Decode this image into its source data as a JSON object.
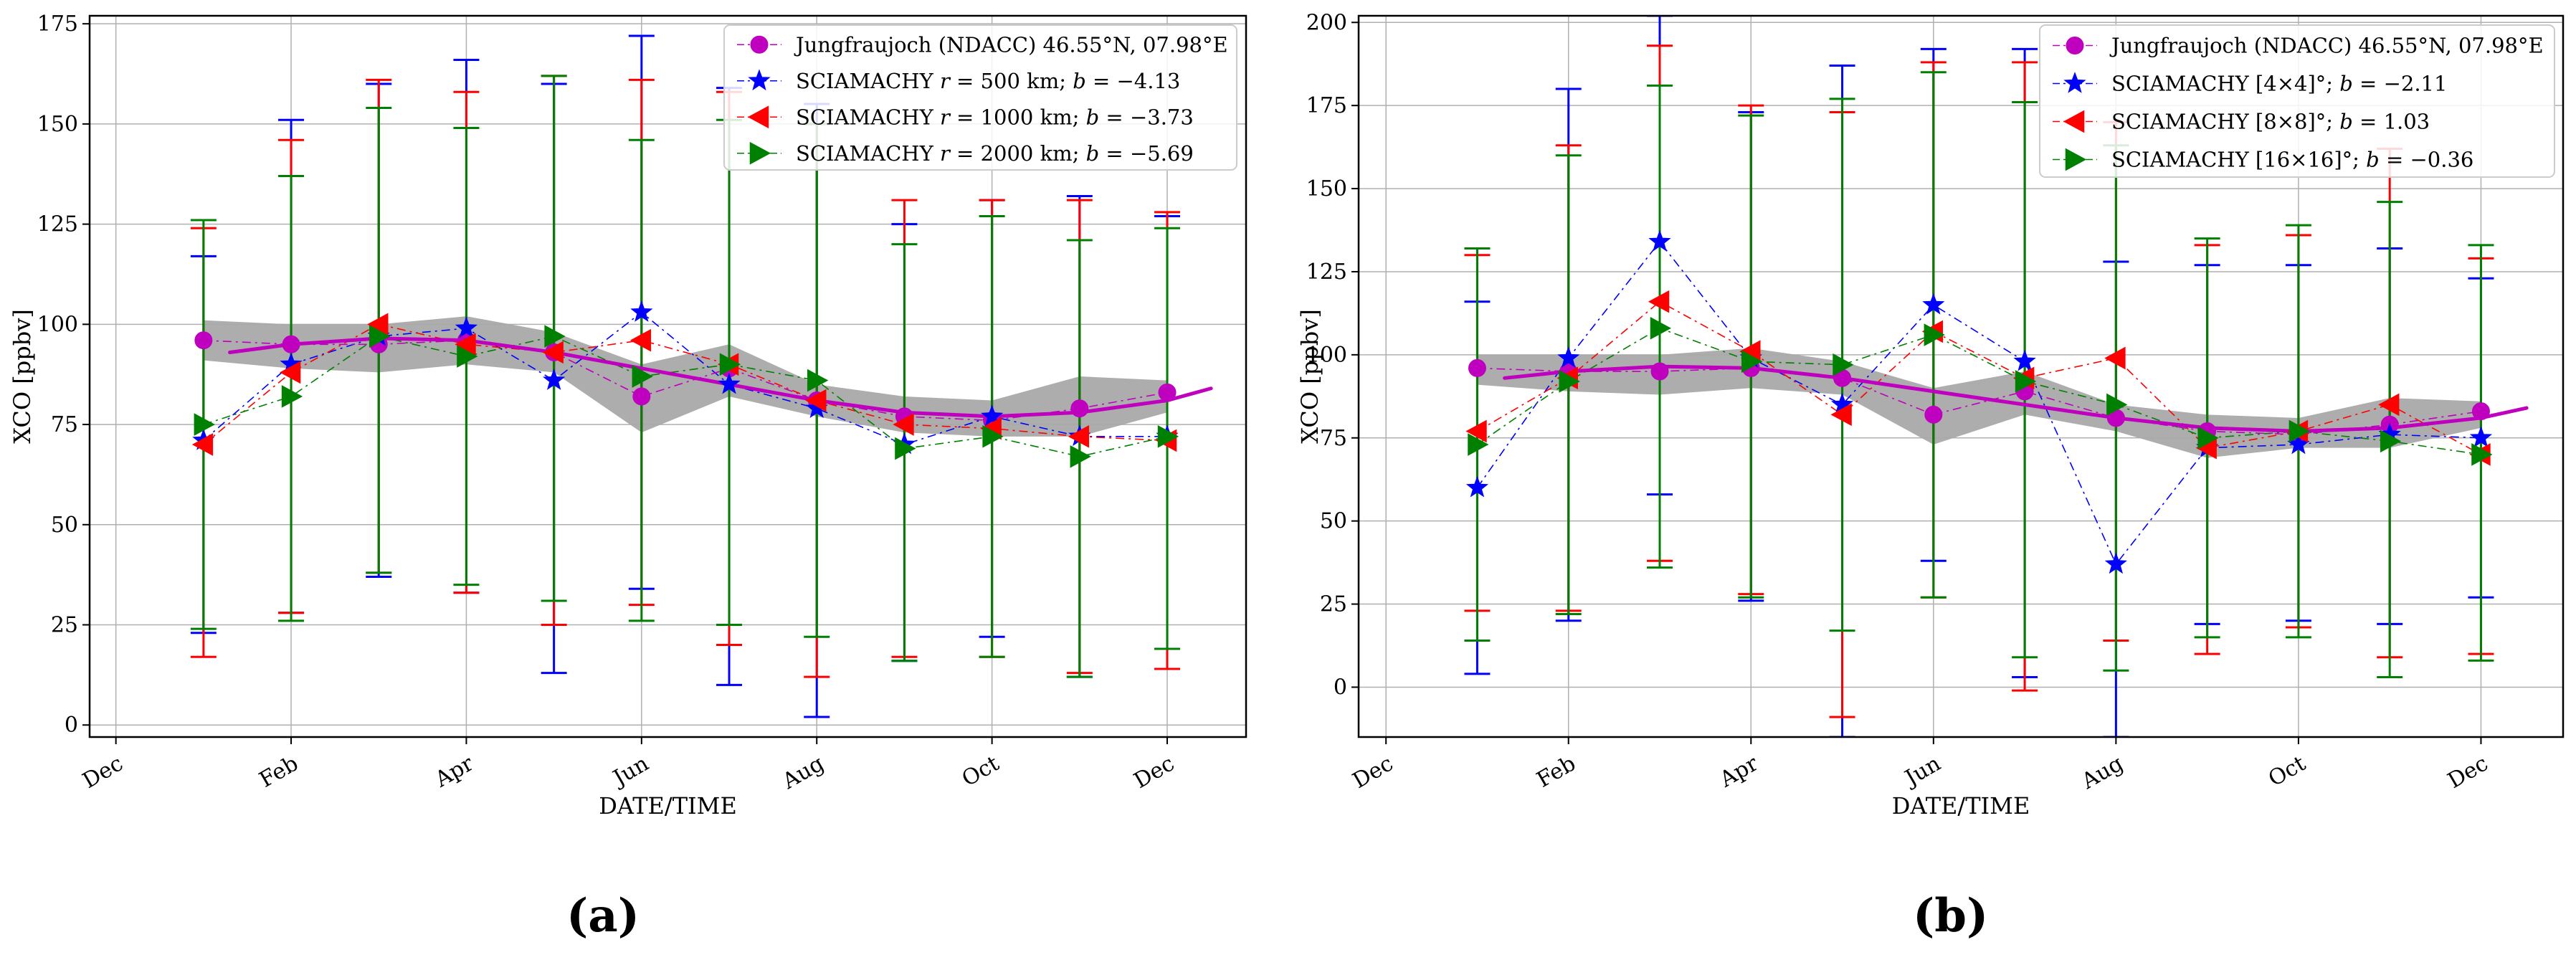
{
  "figure": {
    "panel_labels": [
      "(a)",
      "(b)"
    ]
  },
  "chart_data": [
    {
      "type": "line",
      "panel": "(a)",
      "xlabel": "DATE/TIME",
      "ylabel": "XCO [ppbv]",
      "ylim": [
        -3,
        177
      ],
      "yticks": [
        0,
        25,
        50,
        75,
        100,
        125,
        150,
        175
      ],
      "xlim": [
        -0.3,
        12.9
      ],
      "xticks": [
        {
          "x": 0,
          "label": "Dec"
        },
        {
          "x": 2,
          "label": "Feb"
        },
        {
          "x": 4,
          "label": "Apr"
        },
        {
          "x": 6,
          "label": "Jun"
        },
        {
          "x": 8,
          "label": "Aug"
        },
        {
          "x": 10,
          "label": "Oct"
        },
        {
          "x": 12,
          "label": "Dec"
        }
      ],
      "grid": true,
      "legend_position": "top-right",
      "reference": {
        "name": "Jungfraujoch (NDACC) 46.55°N, 07.98°E",
        "color": "#bf00bf",
        "x": [
          1,
          2,
          3,
          4,
          5,
          6,
          7,
          8,
          9,
          10,
          11,
          12
        ],
        "values": [
          96,
          95,
          95,
          96,
          93,
          82,
          89,
          81,
          77,
          76,
          79,
          83
        ],
        "band_low": [
          91,
          89,
          88,
          90,
          88,
          73,
          82,
          77,
          73,
          72,
          72,
          78
        ],
        "band_high": [
          101,
          100,
          100,
          102,
          98,
          90,
          95,
          85,
          82,
          81,
          87,
          86
        ],
        "smooth_x": [
          1.3,
          2,
          3,
          4,
          5,
          6,
          7,
          8,
          9,
          10,
          11,
          12,
          12.5
        ],
        "smooth_y": [
          93,
          95,
          96.5,
          96,
          93,
          89,
          85,
          81,
          78,
          77,
          78,
          81,
          84
        ]
      },
      "series": [
        {
          "name": "SCIAMACHY r = 500 km; b = −4.13",
          "label_parts": {
            "pre": "SCIAMACHY ",
            "var": "r",
            "mid": " = 500 km;  ",
            "bvar": "b",
            "val": " = −4.13"
          },
          "color": "#0000ff",
          "marker": "star",
          "x": [
            1,
            2,
            3,
            4,
            5,
            6,
            7,
            8,
            9,
            10,
            11,
            12
          ],
          "values": [
            71,
            90,
            97,
            99,
            86,
            103,
            85,
            79,
            70,
            77,
            72,
            72
          ],
          "err_low": [
            23,
            28,
            37,
            33,
            13,
            34,
            10,
            2,
            16,
            22,
            12,
            19
          ],
          "err_high": [
            117,
            151,
            160,
            166,
            160,
            172,
            159,
            155,
            125,
            131,
            132,
            127
          ]
        },
        {
          "name": "SCIAMACHY r = 1000 km; b = −3.73",
          "label_parts": {
            "pre": "SCIAMACHY ",
            "var": "r",
            "mid": " = 1000 km;  ",
            "bvar": "b",
            "val": " = −3.73"
          },
          "color": "#ff0000",
          "marker": "triangle-left",
          "x": [
            1,
            2,
            3,
            4,
            5,
            6,
            7,
            8,
            9,
            10,
            11,
            12
          ],
          "values": [
            70,
            88,
            100,
            95,
            93,
            96,
            90,
            81,
            75,
            74,
            72,
            71
          ],
          "err_low": [
            17,
            28,
            38,
            33,
            25,
            30,
            20,
            12,
            17,
            17,
            13,
            14
          ],
          "err_high": [
            124,
            146,
            161,
            158,
            162,
            161,
            158,
            150,
            131,
            131,
            131,
            128
          ]
        },
        {
          "name": "SCIAMACHY r = 2000 km; b = −5.69",
          "label_parts": {
            "pre": "SCIAMACHY ",
            "var": "r",
            "mid": " = 2000 km;  ",
            "bvar": "b",
            "val": " = −5.69"
          },
          "color": "#008000",
          "marker": "triangle-right",
          "x": [
            1,
            2,
            3,
            4,
            5,
            6,
            7,
            8,
            9,
            10,
            11,
            12
          ],
          "values": [
            75,
            82,
            97,
            92,
            97,
            87,
            90,
            86,
            69,
            72,
            67,
            72
          ],
          "err_low": [
            24,
            26,
            38,
            35,
            31,
            26,
            25,
            22,
            16,
            17,
            12,
            19
          ],
          "err_high": [
            126,
            137,
            154,
            149,
            162,
            146,
            151,
            150,
            120,
            127,
            121,
            124
          ]
        }
      ]
    },
    {
      "type": "line",
      "panel": "(b)",
      "xlabel": "DATE/TIME",
      "ylabel": "XCO [ppbv]",
      "ylim": [
        -15,
        202
      ],
      "yticks": [
        0,
        25,
        50,
        75,
        100,
        125,
        150,
        175,
        200
      ],
      "xlim": [
        -0.3,
        12.9
      ],
      "xticks": [
        {
          "x": 0,
          "label": "Dec"
        },
        {
          "x": 2,
          "label": "Feb"
        },
        {
          "x": 4,
          "label": "Apr"
        },
        {
          "x": 6,
          "label": "Jun"
        },
        {
          "x": 8,
          "label": "Aug"
        },
        {
          "x": 10,
          "label": "Oct"
        },
        {
          "x": 12,
          "label": "Dec"
        }
      ],
      "grid": true,
      "legend_position": "top-right",
      "reference": {
        "name": "Jungfraujoch (NDACC) 46.55°N, 07.98°E",
        "color": "#bf00bf",
        "x": [
          1,
          2,
          3,
          4,
          5,
          6,
          7,
          8,
          9,
          10,
          11,
          12
        ],
        "values": [
          96,
          95,
          95,
          96,
          93,
          82,
          89,
          81,
          77,
          76,
          79,
          83
        ],
        "band_low": [
          91,
          89,
          88,
          90,
          88,
          73,
          82,
          77,
          69,
          72,
          72,
          78
        ],
        "band_high": [
          100,
          100,
          100,
          102,
          98,
          90,
          95,
          85,
          82,
          81,
          87,
          86
        ],
        "smooth_x": [
          1.3,
          2,
          3,
          4,
          5,
          6,
          7,
          8,
          9,
          10,
          11,
          12,
          12.5
        ],
        "smooth_y": [
          93,
          95,
          96.5,
          96,
          93,
          89,
          85,
          81,
          78,
          77,
          78,
          81,
          84
        ]
      },
      "series": [
        {
          "name": "SCIAMACHY [4×4]°; b = −2.11",
          "label_parts": {
            "pre": "SCIAMACHY [4×4]°;  ",
            "var": "",
            "mid": "",
            "bvar": "b",
            "val": " = −2.11"
          },
          "color": "#0000ff",
          "marker": "star",
          "x": [
            1,
            2,
            3,
            4,
            5,
            6,
            7,
            8,
            9,
            10,
            11,
            12
          ],
          "values": [
            60,
            99,
            134,
            99,
            85,
            115,
            98,
            37,
            72,
            73,
            76,
            75
          ],
          "err_low": [
            4,
            20,
            58,
            26,
            -15,
            38,
            3,
            -15,
            19,
            20,
            19,
            27
          ],
          "err_high": [
            116,
            180,
            202,
            173,
            187,
            192,
            192,
            128,
            127,
            127,
            132,
            123
          ]
        },
        {
          "name": "SCIAMACHY [8×8]°; b = 1.03",
          "label_parts": {
            "pre": "SCIAMACHY [8×8]°;  ",
            "var": "",
            "mid": "",
            "bvar": "b",
            "val": " = 1.03"
          },
          "color": "#ff0000",
          "marker": "triangle-left",
          "x": [
            1,
            2,
            3,
            4,
            5,
            6,
            7,
            8,
            9,
            10,
            11,
            12
          ],
          "values": [
            77,
            93,
            116,
            101,
            82,
            107,
            93,
            99,
            72,
            77,
            85,
            70
          ],
          "err_low": [
            23,
            23,
            38,
            28,
            -9,
            27,
            -1,
            14,
            10,
            18,
            9,
            10
          ],
          "err_high": [
            130,
            163,
            193,
            175,
            173,
            188,
            188,
            170,
            133,
            136,
            162,
            129
          ]
        },
        {
          "name": "SCIAMACHY [16×16]°; b = −0.36",
          "label_parts": {
            "pre": "SCIAMACHY [16×16]°;  ",
            "var": "",
            "mid": "",
            "bvar": "b",
            "val": " = −0.36"
          },
          "color": "#008000",
          "marker": "triangle-right",
          "x": [
            1,
            2,
            3,
            4,
            5,
            6,
            7,
            8,
            9,
            10,
            11,
            12
          ],
          "values": [
            73,
            92,
            108,
            98,
            97,
            106,
            92,
            85,
            75,
            77,
            74,
            70
          ],
          "err_low": [
            14,
            22,
            36,
            27,
            17,
            27,
            9,
            5,
            15,
            15,
            3,
            8
          ],
          "err_high": [
            132,
            160,
            181,
            172,
            177,
            185,
            176,
            163,
            135,
            139,
            146,
            133
          ]
        }
      ]
    }
  ]
}
